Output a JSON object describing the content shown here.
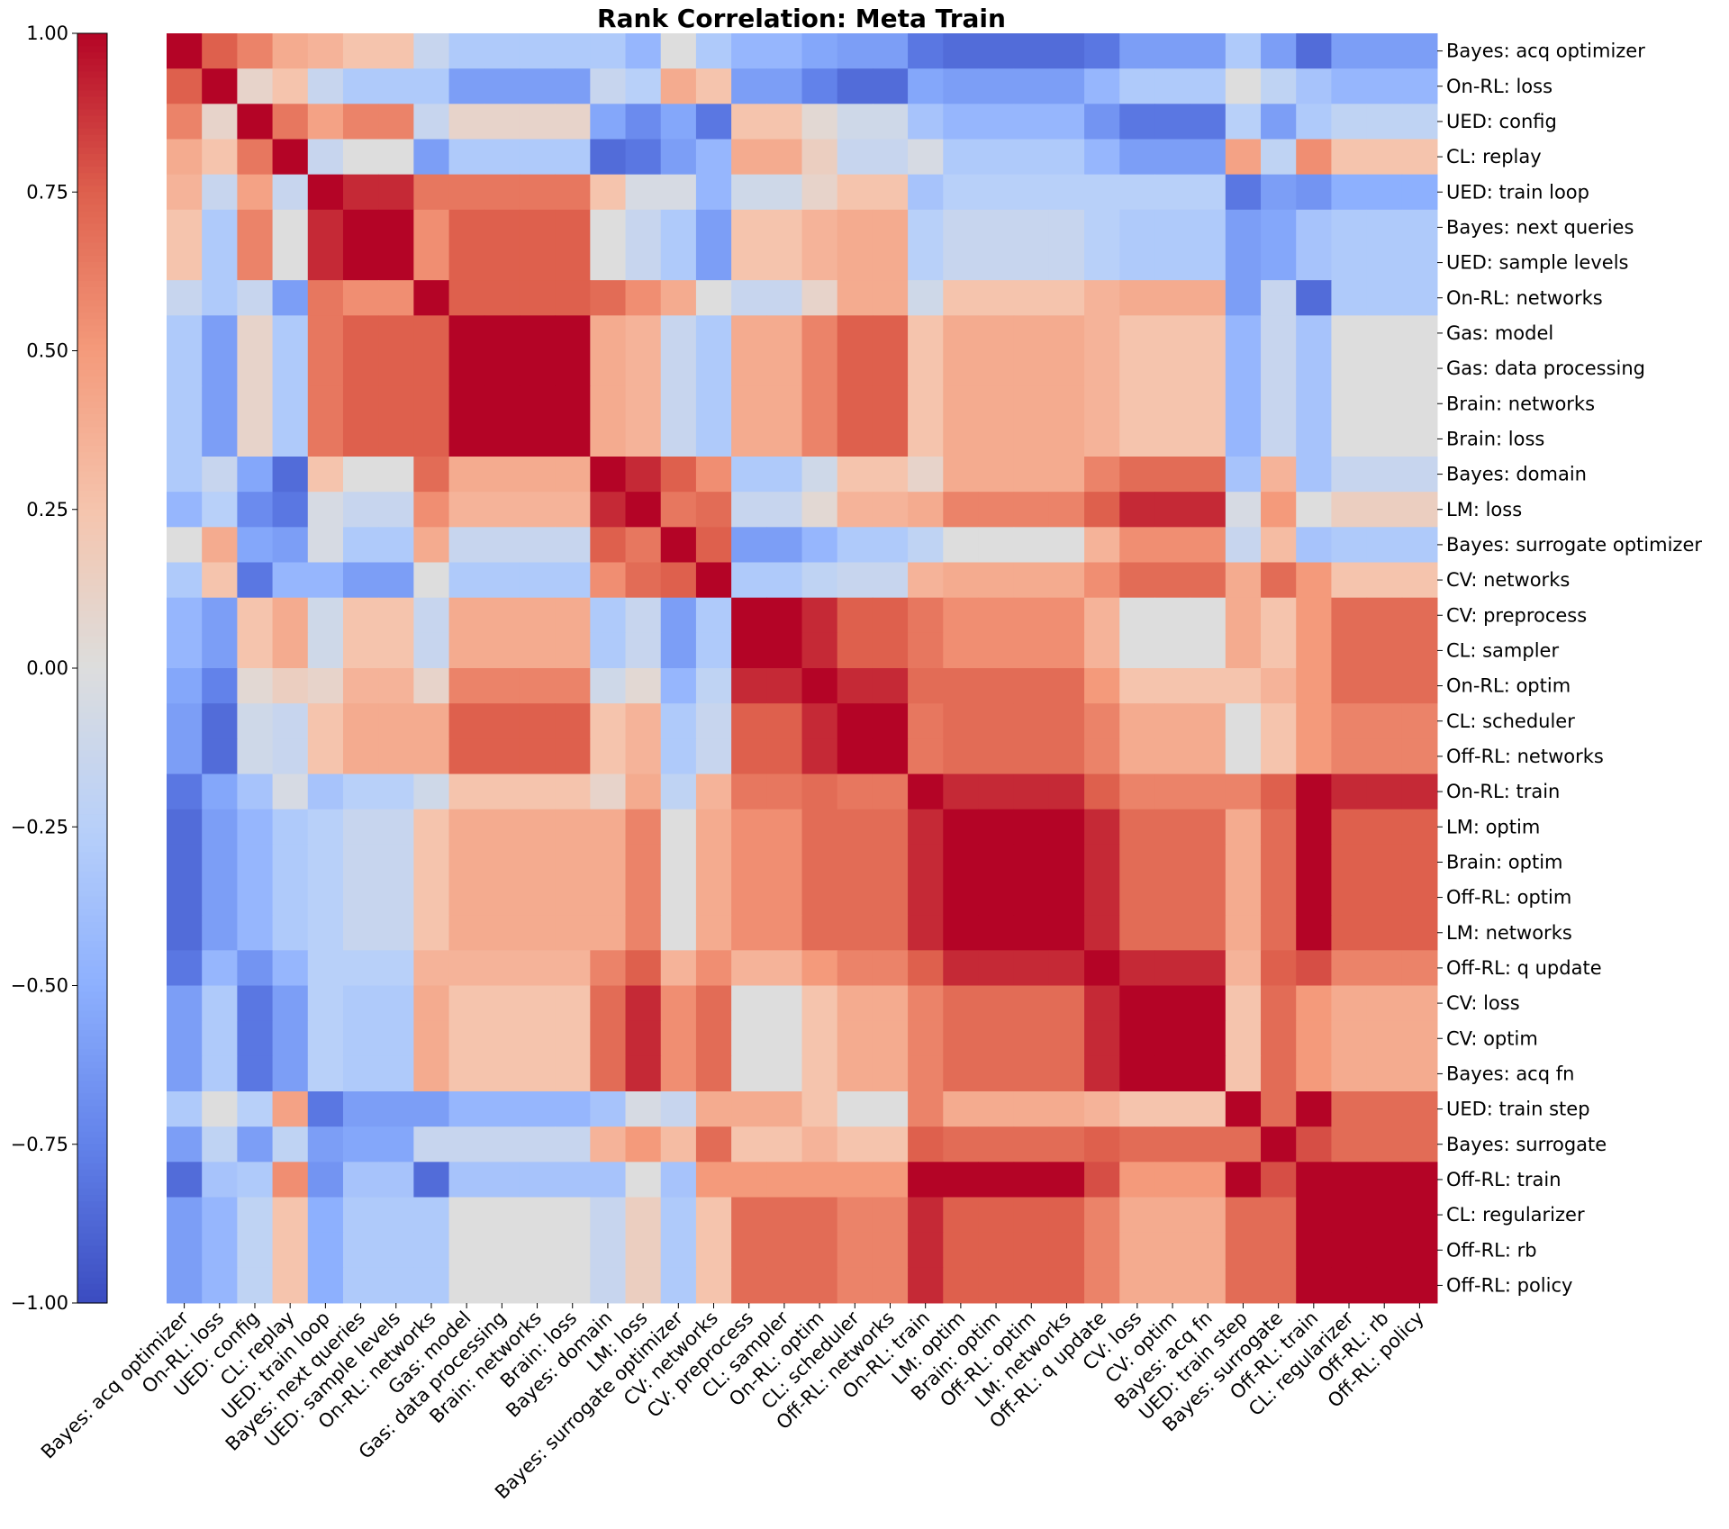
{
  "chart_data": {
    "type": "heatmap",
    "title": "Rank Correlation: Meta Train",
    "colormap": "coolwarm",
    "vmin": -1,
    "vmax": 1,
    "colorbar_ticks": [
      "1.00",
      "0.75",
      "0.50",
      "0.25",
      "0.00",
      "−0.25",
      "−0.50",
      "−0.75",
      "−1.00"
    ],
    "colorbar_tick_values": [
      1,
      0.75,
      0.5,
      0.25,
      0,
      -0.25,
      -0.5,
      -0.75,
      -1
    ],
    "colorbar_position": "left",
    "row_labels_position": "right",
    "labels": [
      "Bayes: acq optimizer",
      "On-RL: loss",
      "UED: config",
      "CL: replay",
      "UED: train loop",
      "Bayes: next queries",
      "UED: sample levels",
      "On-RL: networks",
      "Gas: model",
      "Gas: data processing",
      "Brain: networks",
      "Brain: loss",
      "Bayes: domain",
      "LM: loss",
      "Bayes: surrogate optimizer",
      "CV: networks",
      "CV: preprocess",
      "CL: sampler",
      "On-RL: optim",
      "CL: scheduler",
      "Off-RL: networks",
      "On-RL: train",
      "LM: optim",
      "Brain: optim",
      "Off-RL: optim",
      "LM: networks",
      "Off-RL: q update",
      "CV: loss",
      "CV: optim",
      "Bayes: acq fn",
      "UED: train step",
      "Bayes: surrogate",
      "Off-RL: train",
      "CL: regularizer",
      "Off-RL: rb",
      "Off-RL: policy"
    ],
    "values": [
      [
        1,
        0.75,
        0.6,
        0.4,
        0.35,
        0.25,
        0.25,
        -0.15,
        -0.3,
        -0.3,
        -0.3,
        -0.3,
        -0.3,
        -0.45,
        0,
        -0.3,
        -0.45,
        -0.45,
        -0.55,
        -0.6,
        -0.6,
        -0.8,
        -0.85,
        -0.85,
        -0.85,
        -0.85,
        -0.8,
        -0.6,
        -0.6,
        -0.6,
        -0.3,
        -0.6,
        -0.85,
        -0.6,
        -0.6,
        -0.6
      ],
      [
        0.75,
        1,
        0.1,
        0.25,
        -0.15,
        -0.3,
        -0.3,
        -0.3,
        -0.6,
        -0.6,
        -0.6,
        -0.6,
        -0.15,
        -0.25,
        0.4,
        0.25,
        -0.6,
        -0.6,
        -0.75,
        -0.85,
        -0.85,
        -0.55,
        -0.6,
        -0.6,
        -0.6,
        -0.6,
        -0.45,
        -0.3,
        -0.3,
        -0.3,
        0,
        -0.2,
        -0.35,
        -0.45,
        -0.45,
        -0.45
      ],
      [
        0.6,
        0.1,
        1,
        0.65,
        0.45,
        0.6,
        0.6,
        -0.15,
        0.1,
        0.1,
        0.1,
        0.1,
        -0.55,
        -0.7,
        -0.55,
        -0.8,
        0.25,
        0.25,
        0.05,
        -0.1,
        -0.1,
        -0.35,
        -0.45,
        -0.45,
        -0.45,
        -0.45,
        -0.65,
        -0.8,
        -0.8,
        -0.8,
        -0.25,
        -0.6,
        -0.3,
        -0.2,
        -0.2,
        -0.2
      ],
      [
        0.4,
        0.25,
        0.65,
        1,
        -0.15,
        0,
        0,
        -0.6,
        -0.3,
        -0.3,
        -0.3,
        -0.3,
        -0.85,
        -0.8,
        -0.6,
        -0.45,
        0.4,
        0.4,
        0.15,
        -0.15,
        -0.15,
        -0.05,
        -0.3,
        -0.3,
        -0.3,
        -0.3,
        -0.45,
        -0.6,
        -0.6,
        -0.6,
        0.45,
        -0.2,
        0.55,
        0.25,
        0.25,
        0.25
      ],
      [
        0.35,
        -0.15,
        0.45,
        -0.15,
        1,
        0.9,
        0.9,
        0.65,
        0.65,
        0.65,
        0.65,
        0.65,
        0.25,
        -0.05,
        -0.05,
        -0.45,
        -0.1,
        -0.1,
        0.1,
        0.25,
        0.25,
        -0.35,
        -0.25,
        -0.25,
        -0.25,
        -0.25,
        -0.25,
        -0.25,
        -0.25,
        -0.25,
        -0.8,
        -0.6,
        -0.65,
        -0.5,
        -0.5,
        -0.5
      ],
      [
        0.25,
        -0.3,
        0.6,
        0,
        0.9,
        1,
        1,
        0.55,
        0.75,
        0.75,
        0.75,
        0.75,
        0,
        -0.15,
        -0.3,
        -0.6,
        0.25,
        0.25,
        0.35,
        0.4,
        0.4,
        -0.25,
        -0.15,
        -0.15,
        -0.15,
        -0.15,
        -0.25,
        -0.3,
        -0.3,
        -0.3,
        -0.6,
        -0.55,
        -0.35,
        -0.3,
        -0.3,
        -0.3
      ],
      [
        0.25,
        -0.3,
        0.6,
        0,
        0.9,
        1,
        1,
        0.55,
        0.75,
        0.75,
        0.75,
        0.75,
        0,
        -0.15,
        -0.3,
        -0.6,
        0.25,
        0.25,
        0.35,
        0.4,
        0.4,
        -0.25,
        -0.15,
        -0.15,
        -0.15,
        -0.15,
        -0.25,
        -0.3,
        -0.3,
        -0.3,
        -0.6,
        -0.55,
        -0.35,
        -0.3,
        -0.3,
        -0.3
      ],
      [
        -0.15,
        -0.3,
        -0.15,
        -0.6,
        0.65,
        0.55,
        0.55,
        1,
        0.75,
        0.75,
        0.75,
        0.75,
        0.7,
        0.55,
        0.4,
        0,
        -0.15,
        -0.15,
        0.1,
        0.4,
        0.4,
        -0.1,
        0.25,
        0.25,
        0.25,
        0.25,
        0.35,
        0.4,
        0.4,
        0.4,
        -0.6,
        -0.15,
        -0.85,
        -0.3,
        -0.3,
        -0.3
      ],
      [
        -0.3,
        -0.6,
        0.1,
        -0.3,
        0.65,
        0.75,
        0.75,
        0.75,
        1,
        1,
        1,
        1,
        0.4,
        0.35,
        -0.15,
        -0.3,
        0.4,
        0.4,
        0.6,
        0.75,
        0.75,
        0.25,
        0.4,
        0.4,
        0.4,
        0.4,
        0.35,
        0.25,
        0.25,
        0.25,
        -0.45,
        -0.15,
        -0.35,
        0,
        0,
        0
      ],
      [
        -0.3,
        -0.6,
        0.1,
        -0.3,
        0.65,
        0.75,
        0.75,
        0.75,
        1,
        1,
        1,
        1,
        0.4,
        0.35,
        -0.15,
        -0.3,
        0.4,
        0.4,
        0.6,
        0.75,
        0.75,
        0.25,
        0.4,
        0.4,
        0.4,
        0.4,
        0.35,
        0.25,
        0.25,
        0.25,
        -0.45,
        -0.15,
        -0.35,
        0,
        0,
        0
      ],
      [
        -0.3,
        -0.6,
        0.1,
        -0.3,
        0.65,
        0.75,
        0.75,
        0.75,
        1,
        1,
        1,
        1,
        0.4,
        0.35,
        -0.15,
        -0.3,
        0.4,
        0.4,
        0.6,
        0.75,
        0.75,
        0.25,
        0.4,
        0.4,
        0.4,
        0.4,
        0.35,
        0.25,
        0.25,
        0.25,
        -0.45,
        -0.15,
        -0.35,
        0,
        0,
        0
      ],
      [
        -0.3,
        -0.6,
        0.1,
        -0.3,
        0.65,
        0.75,
        0.75,
        0.75,
        1,
        1,
        1,
        1,
        0.4,
        0.35,
        -0.15,
        -0.3,
        0.4,
        0.4,
        0.6,
        0.75,
        0.75,
        0.25,
        0.4,
        0.4,
        0.4,
        0.4,
        0.35,
        0.25,
        0.25,
        0.25,
        -0.45,
        -0.15,
        -0.35,
        0,
        0,
        0
      ],
      [
        -0.3,
        -0.15,
        -0.55,
        -0.85,
        0.25,
        0,
        0,
        0.7,
        0.4,
        0.4,
        0.4,
        0.4,
        1,
        0.9,
        0.75,
        0.55,
        -0.3,
        -0.3,
        -0.1,
        0.25,
        0.25,
        0.1,
        0.4,
        0.4,
        0.4,
        0.4,
        0.6,
        0.7,
        0.7,
        0.7,
        -0.35,
        0.35,
        -0.35,
        -0.15,
        -0.15,
        -0.15
      ],
      [
        -0.45,
        -0.25,
        -0.7,
        -0.8,
        -0.05,
        -0.15,
        -0.15,
        0.55,
        0.35,
        0.35,
        0.35,
        0.35,
        0.9,
        1,
        0.65,
        0.7,
        -0.15,
        -0.15,
        0.05,
        0.35,
        0.35,
        0.4,
        0.6,
        0.6,
        0.6,
        0.6,
        0.75,
        0.9,
        0.9,
        0.9,
        -0.05,
        0.5,
        0,
        0.15,
        0.15,
        0.15
      ],
      [
        0,
        0.4,
        -0.55,
        -0.6,
        -0.05,
        -0.3,
        -0.3,
        0.4,
        -0.15,
        -0.15,
        -0.15,
        -0.15,
        0.75,
        0.65,
        1,
        0.75,
        -0.6,
        -0.6,
        -0.45,
        -0.3,
        -0.3,
        -0.2,
        0,
        0,
        0,
        0,
        0.35,
        0.55,
        0.55,
        0.55,
        -0.15,
        0.3,
        -0.35,
        -0.3,
        -0.3,
        -0.3
      ],
      [
        -0.3,
        0.25,
        -0.8,
        -0.45,
        -0.45,
        -0.6,
        -0.6,
        0,
        -0.3,
        -0.3,
        -0.3,
        -0.3,
        0.55,
        0.7,
        0.75,
        1,
        -0.3,
        -0.3,
        -0.2,
        -0.15,
        -0.15,
        0.35,
        0.4,
        0.4,
        0.4,
        0.4,
        0.55,
        0.7,
        0.7,
        0.7,
        0.4,
        0.7,
        0.5,
        0.25,
        0.25,
        0.25
      ],
      [
        -0.45,
        -0.6,
        0.25,
        0.4,
        -0.1,
        0.25,
        0.25,
        -0.15,
        0.4,
        0.4,
        0.4,
        0.4,
        -0.3,
        -0.15,
        -0.6,
        -0.3,
        1,
        1,
        0.9,
        0.75,
        0.75,
        0.65,
        0.55,
        0.55,
        0.55,
        0.55,
        0.35,
        0,
        0,
        0,
        0.4,
        0.25,
        0.5,
        0.7,
        0.7,
        0.7
      ],
      [
        -0.45,
        -0.6,
        0.25,
        0.4,
        -0.1,
        0.25,
        0.25,
        -0.15,
        0.4,
        0.4,
        0.4,
        0.4,
        -0.3,
        -0.15,
        -0.6,
        -0.3,
        1,
        1,
        0.9,
        0.75,
        0.75,
        0.65,
        0.55,
        0.55,
        0.55,
        0.55,
        0.35,
        0,
        0,
        0,
        0.4,
        0.25,
        0.5,
        0.7,
        0.7,
        0.7
      ],
      [
        -0.55,
        -0.75,
        0.05,
        0.15,
        0.1,
        0.35,
        0.35,
        0.1,
        0.6,
        0.6,
        0.6,
        0.6,
        -0.1,
        0.05,
        -0.45,
        -0.2,
        0.9,
        0.9,
        1,
        0.9,
        0.9,
        0.7,
        0.7,
        0.7,
        0.7,
        0.7,
        0.5,
        0.25,
        0.25,
        0.25,
        0.25,
        0.35,
        0.5,
        0.7,
        0.7,
        0.7
      ],
      [
        -0.6,
        -0.85,
        -0.1,
        -0.15,
        0.25,
        0.4,
        0.4,
        0.4,
        0.75,
        0.75,
        0.75,
        0.75,
        0.25,
        0.35,
        -0.3,
        -0.15,
        0.75,
        0.75,
        0.9,
        1,
        1,
        0.65,
        0.7,
        0.7,
        0.7,
        0.7,
        0.6,
        0.4,
        0.4,
        0.4,
        0,
        0.25,
        0.5,
        0.6,
        0.6,
        0.6
      ],
      [
        -0.6,
        -0.85,
        -0.1,
        -0.15,
        0.25,
        0.4,
        0.4,
        0.4,
        0.75,
        0.75,
        0.75,
        0.75,
        0.25,
        0.35,
        -0.3,
        -0.15,
        0.75,
        0.75,
        0.9,
        1,
        1,
        0.65,
        0.7,
        0.7,
        0.7,
        0.7,
        0.6,
        0.4,
        0.4,
        0.4,
        0,
        0.25,
        0.5,
        0.6,
        0.6,
        0.6
      ],
      [
        -0.8,
        -0.55,
        -0.35,
        -0.05,
        -0.35,
        -0.25,
        -0.25,
        -0.1,
        0.25,
        0.25,
        0.25,
        0.25,
        0.1,
        0.4,
        -0.2,
        0.35,
        0.65,
        0.65,
        0.7,
        0.65,
        0.65,
        1,
        0.9,
        0.9,
        0.9,
        0.9,
        0.75,
        0.6,
        0.6,
        0.6,
        0.6,
        0.75,
        1,
        0.9,
        0.9,
        0.9
      ],
      [
        -0.85,
        -0.6,
        -0.45,
        -0.3,
        -0.25,
        -0.15,
        -0.15,
        0.25,
        0.4,
        0.4,
        0.4,
        0.4,
        0.4,
        0.6,
        0,
        0.4,
        0.55,
        0.55,
        0.7,
        0.7,
        0.7,
        0.9,
        1,
        1,
        1,
        1,
        0.9,
        0.7,
        0.7,
        0.7,
        0.4,
        0.7,
        1,
        0.75,
        0.75,
        0.75
      ],
      [
        -0.85,
        -0.6,
        -0.45,
        -0.3,
        -0.25,
        -0.15,
        -0.15,
        0.25,
        0.4,
        0.4,
        0.4,
        0.4,
        0.4,
        0.6,
        0,
        0.4,
        0.55,
        0.55,
        0.7,
        0.7,
        0.7,
        0.9,
        1,
        1,
        1,
        1,
        0.9,
        0.7,
        0.7,
        0.7,
        0.4,
        0.7,
        1,
        0.75,
        0.75,
        0.75
      ],
      [
        -0.85,
        -0.6,
        -0.45,
        -0.3,
        -0.25,
        -0.15,
        -0.15,
        0.25,
        0.4,
        0.4,
        0.4,
        0.4,
        0.4,
        0.6,
        0,
        0.4,
        0.55,
        0.55,
        0.7,
        0.7,
        0.7,
        0.9,
        1,
        1,
        1,
        1,
        0.9,
        0.7,
        0.7,
        0.7,
        0.4,
        0.7,
        1,
        0.75,
        0.75,
        0.75
      ],
      [
        -0.85,
        -0.6,
        -0.45,
        -0.3,
        -0.25,
        -0.15,
        -0.15,
        0.25,
        0.4,
        0.4,
        0.4,
        0.4,
        0.4,
        0.6,
        0,
        0.4,
        0.55,
        0.55,
        0.7,
        0.7,
        0.7,
        0.9,
        1,
        1,
        1,
        1,
        0.9,
        0.7,
        0.7,
        0.7,
        0.4,
        0.7,
        1,
        0.75,
        0.75,
        0.75
      ],
      [
        -0.8,
        -0.45,
        -0.65,
        -0.45,
        -0.25,
        -0.25,
        -0.25,
        0.35,
        0.35,
        0.35,
        0.35,
        0.35,
        0.6,
        0.75,
        0.35,
        0.55,
        0.35,
        0.35,
        0.5,
        0.6,
        0.6,
        0.75,
        0.9,
        0.9,
        0.9,
        0.9,
        1,
        0.9,
        0.9,
        0.9,
        0.35,
        0.75,
        0.8,
        0.6,
        0.6,
        0.6
      ],
      [
        -0.6,
        -0.3,
        -0.8,
        -0.6,
        -0.25,
        -0.3,
        -0.3,
        0.4,
        0.25,
        0.25,
        0.25,
        0.25,
        0.7,
        0.9,
        0.55,
        0.7,
        0,
        0,
        0.25,
        0.4,
        0.4,
        0.6,
        0.7,
        0.7,
        0.7,
        0.7,
        0.9,
        1,
        1,
        1,
        0.25,
        0.7,
        0.5,
        0.4,
        0.4,
        0.4
      ],
      [
        -0.6,
        -0.3,
        -0.8,
        -0.6,
        -0.25,
        -0.3,
        -0.3,
        0.4,
        0.25,
        0.25,
        0.25,
        0.25,
        0.7,
        0.9,
        0.55,
        0.7,
        0,
        0,
        0.25,
        0.4,
        0.4,
        0.6,
        0.7,
        0.7,
        0.7,
        0.7,
        0.9,
        1,
        1,
        1,
        0.25,
        0.7,
        0.5,
        0.4,
        0.4,
        0.4
      ],
      [
        -0.6,
        -0.3,
        -0.8,
        -0.6,
        -0.25,
        -0.3,
        -0.3,
        0.4,
        0.25,
        0.25,
        0.25,
        0.25,
        0.7,
        0.9,
        0.55,
        0.7,
        0,
        0,
        0.25,
        0.4,
        0.4,
        0.6,
        0.7,
        0.7,
        0.7,
        0.7,
        0.9,
        1,
        1,
        1,
        0.25,
        0.7,
        0.5,
        0.4,
        0.4,
        0.4
      ],
      [
        -0.3,
        0,
        -0.25,
        0.45,
        -0.8,
        -0.6,
        -0.6,
        -0.6,
        -0.45,
        -0.45,
        -0.45,
        -0.45,
        -0.35,
        -0.05,
        -0.15,
        0.4,
        0.4,
        0.4,
        0.25,
        0,
        0,
        0.6,
        0.4,
        0.4,
        0.4,
        0.4,
        0.35,
        0.25,
        0.25,
        0.25,
        1,
        0.7,
        1,
        0.7,
        0.7,
        0.7
      ],
      [
        -0.6,
        -0.2,
        -0.6,
        -0.2,
        -0.6,
        -0.55,
        -0.55,
        -0.15,
        -0.15,
        -0.15,
        -0.15,
        -0.15,
        0.35,
        0.5,
        0.3,
        0.7,
        0.25,
        0.25,
        0.35,
        0.25,
        0.25,
        0.75,
        0.7,
        0.7,
        0.7,
        0.7,
        0.75,
        0.7,
        0.7,
        0.7,
        0.7,
        1,
        0.8,
        0.7,
        0.7,
        0.7
      ],
      [
        -0.85,
        -0.35,
        -0.3,
        0.55,
        -0.65,
        -0.35,
        -0.35,
        -0.85,
        -0.35,
        -0.35,
        -0.35,
        -0.35,
        -0.35,
        0,
        -0.35,
        0.5,
        0.5,
        0.5,
        0.5,
        0.5,
        0.5,
        1,
        1,
        1,
        1,
        1,
        0.8,
        0.5,
        0.5,
        0.5,
        1,
        0.8,
        1,
        1,
        1,
        1
      ],
      [
        -0.6,
        -0.45,
        -0.2,
        0.25,
        -0.5,
        -0.3,
        -0.3,
        -0.3,
        0,
        0,
        0,
        0,
        -0.15,
        0.15,
        -0.3,
        0.25,
        0.7,
        0.7,
        0.7,
        0.6,
        0.6,
        0.9,
        0.75,
        0.75,
        0.75,
        0.75,
        0.6,
        0.4,
        0.4,
        0.4,
        0.7,
        0.7,
        1,
        1,
        1,
        1
      ],
      [
        -0.6,
        -0.45,
        -0.2,
        0.25,
        -0.5,
        -0.3,
        -0.3,
        -0.3,
        0,
        0,
        0,
        0,
        -0.15,
        0.15,
        -0.3,
        0.25,
        0.7,
        0.7,
        0.7,
        0.6,
        0.6,
        0.9,
        0.75,
        0.75,
        0.75,
        0.75,
        0.6,
        0.4,
        0.4,
        0.4,
        0.7,
        0.7,
        1,
        1,
        1,
        1
      ],
      [
        -0.6,
        -0.45,
        -0.2,
        0.25,
        -0.5,
        -0.3,
        -0.3,
        -0.3,
        0,
        0,
        0,
        0,
        -0.15,
        0.15,
        -0.3,
        0.25,
        0.7,
        0.7,
        0.7,
        0.6,
        0.6,
        0.9,
        0.75,
        0.75,
        0.75,
        0.75,
        0.6,
        0.4,
        0.4,
        0.4,
        0.7,
        0.7,
        1,
        1,
        1,
        1
      ]
    ]
  }
}
